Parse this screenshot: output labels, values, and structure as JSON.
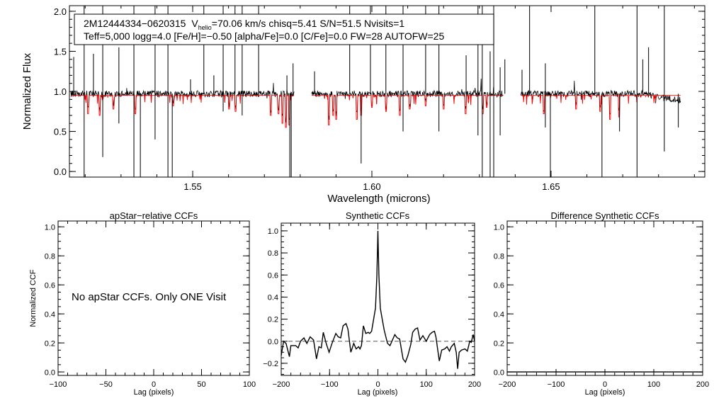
{
  "chart_data": [
    {
      "type": "line",
      "id": "spectrum",
      "xlabel": "Wavelength (microns)",
      "ylabel": "Normalized Flux",
      "xlim": [
        1.5156,
        1.6929
      ],
      "ylim": [
        -0.07,
        2.07
      ],
      "xticks": [
        1.55,
        1.6,
        1.65
      ],
      "xtick_labels": [
        "1.55",
        "1.60",
        "1.65"
      ],
      "yticks": [
        0.0,
        0.5,
        1.0,
        1.5,
        2.0
      ],
      "ytick_labels": [
        "0.0",
        "0.5",
        "1.0",
        "1.5",
        "2.0"
      ],
      "legend": {
        "line1_id": "2M12444334−0620315",
        "line1_v": "V",
        "line1_v_sub": "helio",
        "line1_rest": "=70.06 km/s  chisq=5.41  S/N=51.5  Nvisits=1",
        "line2": "Teff=5,000 logg=4.0 [Fe/H]=−0.50 [alpha/Fe]=0.0 [C/Fe]=0.0 FW=28 AUTOFW=25",
        "placement": "top-left"
      },
      "series": [
        {
          "name": "observed",
          "color": "#000000",
          "continuum": 0.97
        },
        {
          "name": "synthetic",
          "color": "#ff0000",
          "continuum": 0.95
        }
      ],
      "chips": [
        [
          1.516,
          1.5783
        ],
        [
          1.5832,
          1.6367
        ],
        [
          1.6415,
          1.6862
        ]
      ],
      "spikes": [
        [
          1.5168,
          1.43
        ],
        [
          1.5197,
          2.07
        ],
        [
          1.5197,
          -0.07
        ],
        [
          1.5223,
          1.47
        ],
        [
          1.5249,
          2.07
        ],
        [
          1.5249,
          0.18
        ],
        [
          1.5294,
          1.55
        ],
        [
          1.5294,
          0.6
        ],
        [
          1.5336,
          2.07
        ],
        [
          1.5336,
          -0.07
        ],
        [
          1.5354,
          -0.07
        ],
        [
          1.5395,
          2.07
        ],
        [
          1.5395,
          0.4
        ],
        [
          1.5431,
          2.07
        ],
        [
          1.5431,
          -0.07
        ],
        [
          1.5443,
          -0.07
        ],
        [
          1.5494,
          1.15
        ],
        [
          1.5531,
          2.07
        ],
        [
          1.5559,
          1.2
        ],
        [
          1.5585,
          2.07
        ],
        [
          1.5585,
          0.75
        ],
        [
          1.5618,
          2.07
        ],
        [
          1.5638,
          2.07
        ],
        [
          1.5638,
          0.7
        ],
        [
          1.5684,
          2.07
        ],
        [
          1.5763,
          1.2
        ],
        [
          1.5771,
          -0.07
        ],
        [
          1.5775,
          -0.07
        ],
        [
          1.578,
          1.35
        ],
        [
          1.584,
          1.25
        ],
        [
          1.5938,
          2.07
        ],
        [
          1.597,
          0.1
        ],
        [
          1.5996,
          2.07
        ],
        [
          1.6039,
          2.07
        ],
        [
          1.6087,
          2.07
        ],
        [
          1.6087,
          0.5
        ],
        [
          1.615,
          2.07
        ],
        [
          1.6187,
          2.07
        ],
        [
          1.6187,
          0.5
        ],
        [
          1.6263,
          1.45
        ],
        [
          1.6296,
          2.07
        ],
        [
          1.6296,
          0.45
        ],
        [
          1.6308,
          2.07
        ],
        [
          1.6308,
          -0.07
        ],
        [
          1.633,
          -0.07
        ],
        [
          1.633,
          1.5
        ],
        [
          1.634,
          2.07
        ],
        [
          1.634,
          -0.07
        ],
        [
          1.6358,
          0.45
        ],
        [
          1.6358,
          1.3
        ],
        [
          1.6371,
          1.4
        ],
        [
          1.6419,
          1.27
        ],
        [
          1.644,
          2.07
        ],
        [
          1.6484,
          1.35
        ],
        [
          1.6484,
          0.55
        ],
        [
          1.6498,
          -0.07
        ],
        [
          1.6622,
          2.07
        ],
        [
          1.6642,
          -0.07
        ],
        [
          1.6691,
          0.5
        ],
        [
          1.674,
          2.07
        ],
        [
          1.674,
          -0.07
        ],
        [
          1.6756,
          1.4
        ],
        [
          1.6772,
          1.55
        ],
        [
          1.6816,
          2.07
        ],
        [
          1.6816,
          0.25
        ],
        [
          1.6855,
          0.55
        ]
      ],
      "model_lines": [
        [
          1.5208,
          0.72
        ],
        [
          1.524,
          0.7
        ],
        [
          1.5279,
          0.78
        ],
        [
          1.534,
          0.72
        ],
        [
          1.5445,
          0.82
        ],
        [
          1.5601,
          0.78
        ],
        [
          1.562,
          0.75
        ],
        [
          1.5718,
          0.7
        ],
        [
          1.574,
          0.72
        ],
        [
          1.575,
          0.6
        ],
        [
          1.576,
          0.55
        ],
        [
          1.577,
          0.58
        ],
        [
          1.588,
          0.58
        ],
        [
          1.5892,
          0.7
        ],
        [
          1.59,
          0.65
        ],
        [
          1.5958,
          0.65
        ],
        [
          1.597,
          0.7
        ],
        [
          1.6,
          0.8
        ],
        [
          1.604,
          0.75
        ],
        [
          1.6078,
          0.7
        ],
        [
          1.6105,
          0.78
        ],
        [
          1.615,
          0.82
        ],
        [
          1.62,
          0.78
        ],
        [
          1.6262,
          0.72
        ],
        [
          1.631,
          0.72
        ],
        [
          1.632,
          0.8
        ],
        [
          1.648,
          0.72
        ],
        [
          1.657,
          0.78
        ],
        [
          1.6637,
          0.75
        ],
        [
          1.6665,
          0.65
        ],
        [
          1.669,
          0.68
        ]
      ]
    },
    {
      "type": "line",
      "id": "apstar-ccf",
      "title": "apStar−relative CCFs",
      "xlabel": "Lag (pixels)",
      "ylabel": "Normalized CCF",
      "xlim": [
        -100,
        100
      ],
      "ylim": [
        -0.024,
        1.04
      ],
      "xticks": [
        -100,
        -50,
        0,
        50,
        100
      ],
      "xtick_labels": [
        "−100",
        "−50",
        "0",
        "50",
        "100"
      ],
      "yticks": [
        0,
        0.2,
        0.4,
        0.6,
        0.8,
        1.0
      ],
      "ytick_labels": [
        "0.0",
        "0.2",
        "0.4",
        "0.6",
        "0.8",
        "1.0"
      ],
      "annotation": "No apStar CCFs.  Only ONE Visit"
    },
    {
      "type": "line",
      "id": "synthetic-ccf",
      "title": "Synthetic CCFs",
      "xlabel": "Lag (pixels)",
      "xlim": [
        -200,
        200
      ],
      "ylim": [
        -0.31,
        1.07
      ],
      "xticks": [
        -200,
        -100,
        0,
        100,
        200
      ],
      "xtick_labels": [
        "−200",
        "−100",
        "0",
        "100",
        "200"
      ],
      "yticks": [
        -0.2,
        0,
        0.2,
        0.4,
        0.6,
        0.8,
        1.0
      ],
      "ytick_labels": [
        "−0.2",
        "0.0",
        "0.2",
        "0.4",
        "0.6",
        "0.8",
        "1.0"
      ],
      "reference_line": 0.0,
      "x": [
        -200,
        -195,
        -190,
        -183,
        -180,
        -170,
        -165,
        -160,
        -153,
        -147,
        -140,
        -133,
        -127,
        -122,
        -117,
        -113,
        -107,
        -101,
        -95,
        -87,
        -82,
        -77,
        -72,
        -66,
        -62,
        -56,
        -50,
        -45,
        -40,
        -37,
        -34,
        -30,
        -25,
        -20,
        -17,
        -13,
        -10,
        -5,
        -2,
        0,
        2,
        5,
        9,
        13,
        17,
        20,
        25,
        30,
        35,
        40,
        45,
        52,
        57,
        62,
        68,
        72,
        77,
        82,
        87,
        93,
        100,
        107,
        112,
        117,
        120,
        127,
        132,
        138,
        143,
        148,
        152,
        158,
        162,
        165,
        168,
        173,
        180,
        185,
        190,
        193,
        197,
        200
      ],
      "y": [
        -0.13,
        0.0,
        -0.02,
        -0.14,
        -0.04,
        -0.04,
        -0.06,
        0.0,
        0.03,
        -0.02,
        0.04,
        0.01,
        -0.16,
        -0.05,
        -0.06,
        0.08,
        -0.02,
        -0.1,
        -0.02,
        0.07,
        0.04,
        0.03,
        0.14,
        0.16,
        0.11,
        -0.1,
        -0.02,
        -0.07,
        -0.05,
        -0.07,
        -0.04,
        0.14,
        0.07,
        0.08,
        0.07,
        0.09,
        0.17,
        0.3,
        0.6,
        1.0,
        0.6,
        0.3,
        0.2,
        0.1,
        0.03,
        -0.02,
        -0.04,
        0.01,
        0.06,
        0.03,
        0.02,
        -0.16,
        -0.19,
        -0.13,
        -0.03,
        0.08,
        0.11,
        0.12,
        0.01,
        0.05,
        0.0,
        0.06,
        0.08,
        0.09,
        0.04,
        -0.18,
        -0.08,
        -0.07,
        -0.05,
        -0.09,
        -0.05,
        -0.02,
        -0.1,
        -0.25,
        -0.1,
        -0.08,
        -0.07,
        -0.09,
        0.0,
        -0.01,
        0.06,
        0.0
      ]
    },
    {
      "type": "line",
      "id": "difference-ccf",
      "title": "Difference Synthetic CCFs",
      "xlabel": "Lag (pixels)",
      "xlim": [
        -200,
        200
      ],
      "ylim": [
        -0.024,
        1.04
      ],
      "xticks": [
        -200,
        -100,
        0,
        100,
        200
      ],
      "xtick_labels": [
        "−200",
        "−100",
        "0",
        "100",
        "200"
      ],
      "yticks": [
        0,
        0.2,
        0.4,
        0.6,
        0.8,
        1.0
      ],
      "ytick_labels": [
        "0.0",
        "0.2",
        "0.4",
        "0.6",
        "0.8",
        "1.0"
      ],
      "x": [
        -200,
        200
      ],
      "y": [
        0.0,
        0.0
      ]
    }
  ]
}
